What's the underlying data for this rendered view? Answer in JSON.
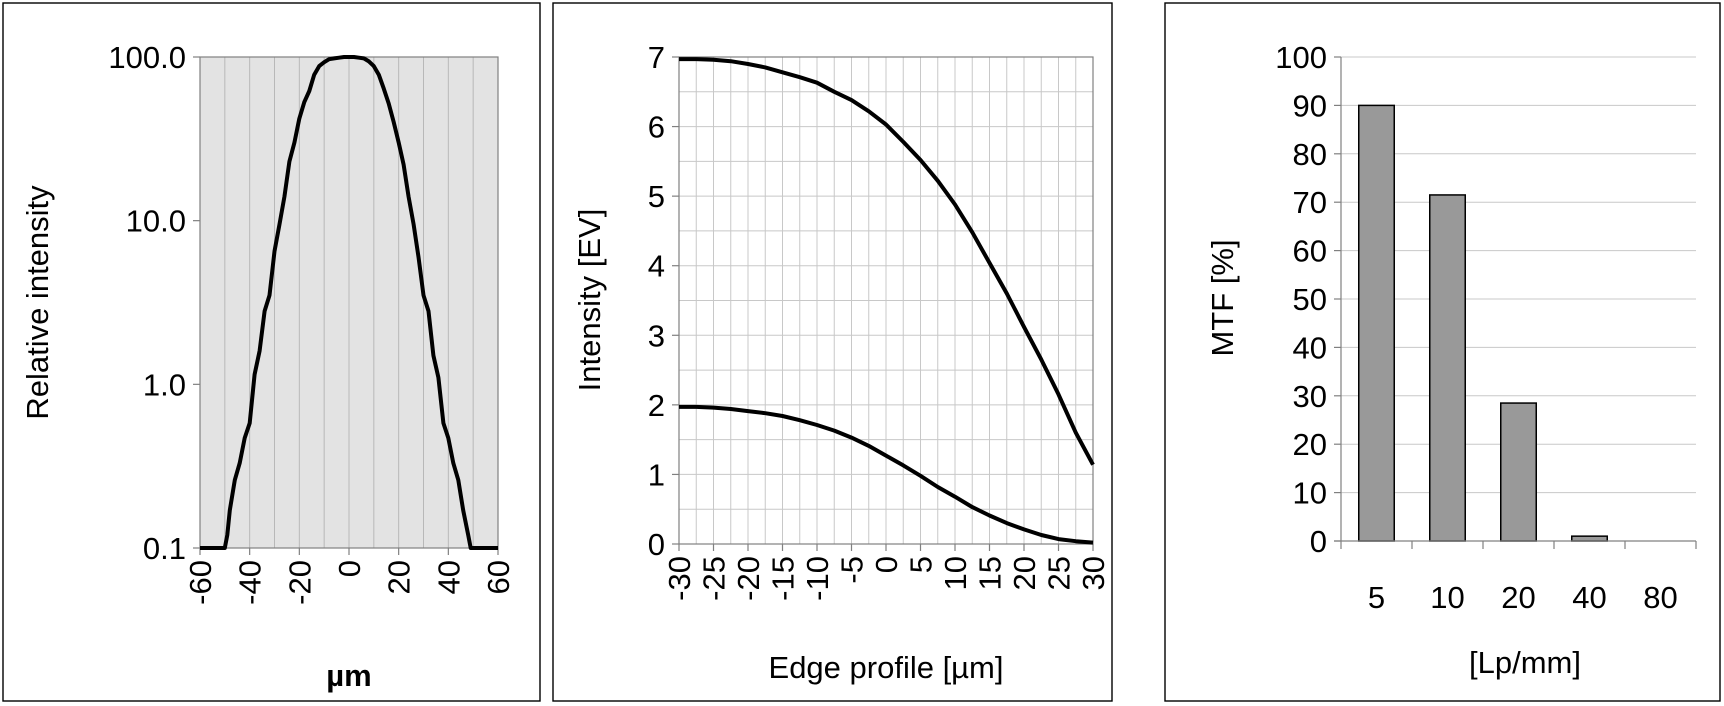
{
  "chart_data": [
    {
      "type": "line",
      "xlabel": "µm",
      "ylabel": "Relative intensity",
      "x_ticks": [
        -60,
        -40,
        -20,
        0,
        20,
        40,
        60
      ],
      "x_tick_labels": [
        "-60",
        "-40",
        "-20",
        "0",
        "20",
        "40",
        "60"
      ],
      "xlim": [
        -60,
        60
      ],
      "y_scale": "log",
      "ylim": [
        0.1,
        100
      ],
      "y_ticks": [
        0.1,
        1,
        10,
        100
      ],
      "y_tick_labels": [
        "0.1",
        "1.0",
        "10.0",
        "100.0"
      ],
      "grid": "vertical",
      "plot_background": "#e3e3e3",
      "series": [
        {
          "x": [
            -60,
            -50,
            -49,
            -48,
            -46,
            -44,
            -42,
            -40,
            -38,
            -36,
            -34,
            -32,
            -30,
            -28,
            -26,
            -24,
            -22,
            -20,
            -18,
            -16,
            -14,
            -12,
            -10,
            -8,
            -6,
            -4,
            -2,
            0,
            2,
            4,
            6,
            8,
            10,
            12,
            14,
            16,
            18,
            20,
            22,
            24,
            26,
            28,
            30,
            32,
            34,
            36,
            38,
            40,
            42,
            44,
            46,
            48,
            49,
            50,
            60
          ],
          "y": [
            0.1,
            0.1,
            0.12,
            0.17,
            0.26,
            0.33,
            0.47,
            0.58,
            1.15,
            1.6,
            2.8,
            3.5,
            6.5,
            9.5,
            14,
            23,
            30,
            42,
            53,
            62,
            78,
            88,
            93,
            97,
            98,
            99,
            100,
            100,
            100,
            99,
            98,
            94,
            88,
            78,
            64,
            52,
            40,
            30,
            22,
            14,
            9.5,
            6,
            3.5,
            2.8,
            1.5,
            1.1,
            0.58,
            0.47,
            0.33,
            0.26,
            0.17,
            0.12,
            0.1,
            0.1,
            0.1
          ]
        }
      ]
    },
    {
      "type": "line",
      "xlabel": "Edge profile [µm]",
      "ylabel": "Intensity [EV]",
      "x_ticks": [
        -30,
        -25,
        -20,
        -15,
        -10,
        -5,
        0,
        5,
        10,
        15,
        20,
        25,
        30
      ],
      "x_tick_labels": [
        "-30",
        "-25",
        "-20",
        "-15",
        "-10",
        "-5",
        "0",
        "5",
        "10",
        "15",
        "20",
        "25",
        "30"
      ],
      "xlim": [
        -30,
        30
      ],
      "ylim": [
        0,
        7
      ],
      "y_ticks": [
        0,
        1,
        2,
        3,
        4,
        5,
        6,
        7
      ],
      "y_tick_labels": [
        "0",
        "1",
        "2",
        "3",
        "4",
        "5",
        "6",
        "7"
      ],
      "grid": "both",
      "series": [
        {
          "x": [
            -30,
            -27.5,
            -25,
            -22.5,
            -20,
            -17.5,
            -15,
            -12.5,
            -10,
            -7.5,
            -5,
            -2.5,
            0,
            2.5,
            5,
            7.5,
            10,
            12.5,
            15,
            17.5,
            20,
            22.5,
            25,
            27.5,
            30
          ],
          "y": [
            6.97,
            6.97,
            6.96,
            6.94,
            6.9,
            6.85,
            6.78,
            6.71,
            6.63,
            6.5,
            6.38,
            6.22,
            6.03,
            5.78,
            5.52,
            5.22,
            4.88,
            4.48,
            4.04,
            3.6,
            3.12,
            2.65,
            2.15,
            1.6,
            1.14
          ]
        },
        {
          "x": [
            -30,
            -27.5,
            -25,
            -22.5,
            -20,
            -17.5,
            -15,
            -12.5,
            -10,
            -7.5,
            -5,
            -2.5,
            0,
            2.5,
            5,
            7.5,
            10,
            12.5,
            15,
            17.5,
            20,
            22.5,
            25,
            27.5,
            30
          ],
          "y": [
            1.97,
            1.97,
            1.96,
            1.94,
            1.91,
            1.88,
            1.84,
            1.78,
            1.71,
            1.63,
            1.53,
            1.41,
            1.27,
            1.13,
            0.98,
            0.82,
            0.68,
            0.53,
            0.41,
            0.3,
            0.21,
            0.13,
            0.07,
            0.04,
            0.02
          ]
        }
      ]
    },
    {
      "type": "bar",
      "xlabel": "[Lp/mm]",
      "ylabel": "MTF [%]",
      "categories": [
        "5",
        "10",
        "20",
        "40",
        "80"
      ],
      "values": [
        90,
        71.5,
        28.5,
        1,
        0
      ],
      "ylim": [
        0,
        100
      ],
      "y_ticks": [
        0,
        10,
        20,
        30,
        40,
        50,
        60,
        70,
        80,
        90,
        100
      ],
      "y_tick_labels": [
        "0",
        "10",
        "20",
        "30",
        "40",
        "50",
        "60",
        "70",
        "80",
        "90",
        "100"
      ],
      "grid": "horizontal",
      "bar_color": "#999999"
    }
  ]
}
